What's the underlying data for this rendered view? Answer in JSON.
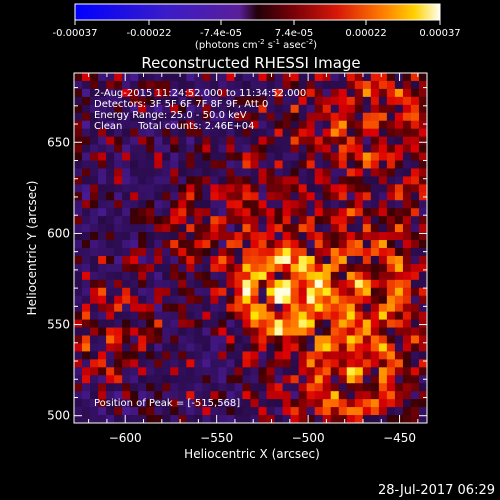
{
  "chart_data": {
    "type": "heatmap",
    "title": "Reconstructed RHESSI Image",
    "xlabel": "Heliocentric X (arcsec)",
    "ylabel": "Heliocentric Y (arcsec)",
    "xlim": [
      -628,
      -435
    ],
    "ylim": [
      496,
      688
    ],
    "xticks": [
      -600,
      -550,
      -500,
      -450
    ],
    "yticks": [
      500,
      550,
      600,
      650
    ],
    "colorbar": {
      "ticks": [
        "-0.00037",
        "-0.00022",
        "-7.4e-05",
        "7.4e-05",
        "0.00022",
        "0.00037"
      ],
      "unit_prefix": "(photons cm",
      "unit_exp1": "-2",
      "unit_mid1": " s",
      "unit_exp2": "-1",
      "unit_mid2": " asec",
      "unit_exp3": "-2",
      "unit_suffix": ")",
      "vmin": -0.00037,
      "vmax": 0.00037
    },
    "annotations": [
      "2-Aug-2015 11:24:52.000 to 11:34:52.000",
      "Detectors: 3F 5F 6F 7F 8F 9F, Att 0",
      "Energy Range: 25.0 - 50.0 keV",
      "Clean     Total counts: 2.46E+04"
    ],
    "peak_label": "Position of Peak = [-515,568]",
    "peak": [
      -515,
      568
    ]
  },
  "footer": {
    "timestamp": "28-Jul-2017 06:29"
  }
}
